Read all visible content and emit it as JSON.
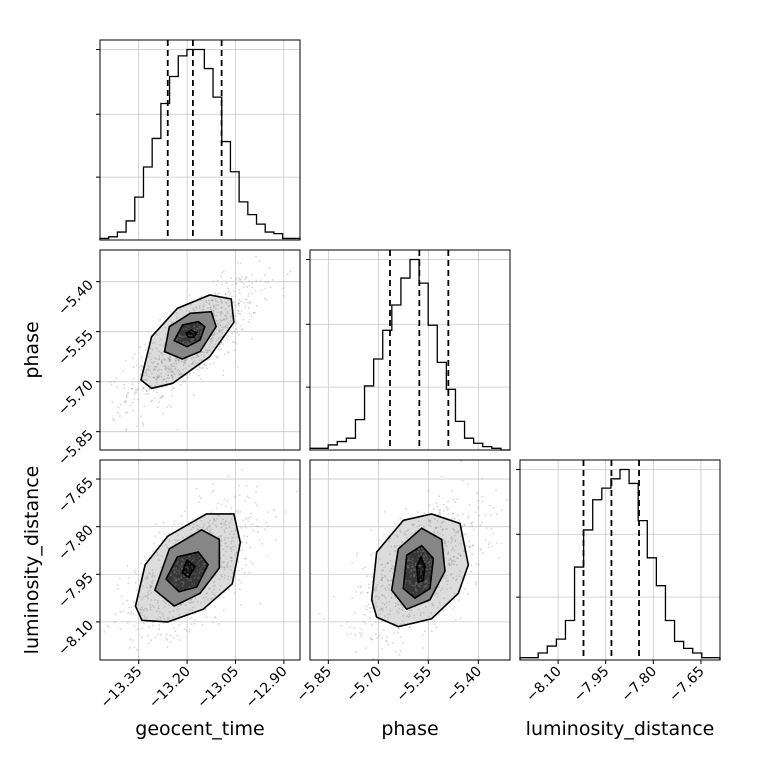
{
  "chart_data": {
    "type": "corner",
    "parameters": [
      "geocent_time",
      "phase",
      "luminosity_distance"
    ],
    "axis_labels": {
      "geocent_time": "geocent_time",
      "phase": "phase",
      "luminosity_distance": "luminosity_distance"
    },
    "ranges": {
      "geocent_time": [
        -13.47,
        -12.85
      ],
      "phase": [
        -5.905,
        -5.305
      ],
      "luminosity_distance": [
        -8.22,
        -7.59
      ]
    },
    "ticks": {
      "geocent_time": {
        "values": [
          -13.35,
          -13.2,
          -13.05,
          -12.9
        ],
        "labels": [
          "−13.35",
          "−13.20",
          "−13.05",
          "−12.90"
        ]
      },
      "phase": {
        "values": [
          -5.85,
          -5.7,
          -5.55,
          -5.4
        ],
        "labels": [
          "−5.85",
          "−5.70",
          "−5.55",
          "−5.40"
        ]
      },
      "luminosity_distance": {
        "values": [
          -8.1,
          -7.95,
          -7.8,
          -7.65
        ],
        "labels": [
          "−8.10",
          "−7.95",
          "−7.80",
          "−7.65"
        ]
      }
    },
    "quantiles": {
      "geocent_time": [
        -13.26,
        -13.182,
        -13.093
      ],
      "phase": [
        -5.665,
        -5.577,
        -5.49
      ],
      "luminosity_distance": [
        -8.02,
        -7.932,
        -7.845
      ]
    },
    "histograms": {
      "geocent_time": {
        "edges_range": [
          -13.47,
          -12.85
        ],
        "counts": [
          1,
          2,
          5,
          12,
          27,
          46,
          64,
          86,
          103,
          116,
          120,
          120,
          108,
          90,
          62,
          43,
          24,
          16,
          10,
          5,
          4,
          1,
          1
        ]
      },
      "phase": {
        "edges_range": [
          -5.905,
          -5.305
        ],
        "counts": [
          1,
          1,
          3,
          5,
          7,
          18,
          38,
          54,
          71,
          86,
          102,
          113,
          99,
          74,
          52,
          36,
          17,
          7,
          4,
          2,
          1,
          0
        ]
      },
      "luminosity_distance": {
        "edges_range": [
          -8.22,
          -7.59
        ],
        "counts": [
          1,
          1,
          3,
          6,
          9,
          17,
          40,
          56,
          69,
          74,
          78,
          82,
          76,
          60,
          44,
          32,
          17,
          8,
          5,
          3,
          1,
          1
        ]
      }
    },
    "pairs": [
      {
        "x": "geocent_time",
        "y": "phase",
        "contours": [
          [
            [
              -13.203,
              -5.555
            ],
            [
              -13.187,
              -5.545
            ],
            [
              -13.17,
              -5.554
            ],
            [
              -13.18,
              -5.567
            ],
            [
              -13.196,
              -5.566
            ],
            [
              -13.203,
              -5.555
            ]
          ],
          [
            [
              -13.24,
              -5.577
            ],
            [
              -13.214,
              -5.53
            ],
            [
              -13.165,
              -5.52
            ],
            [
              -13.145,
              -5.535
            ],
            [
              -13.16,
              -5.575
            ],
            [
              -13.2,
              -5.595
            ],
            [
              -13.24,
              -5.577
            ]
          ],
          [
            [
              -13.27,
              -5.61
            ],
            [
              -13.255,
              -5.535
            ],
            [
              -13.19,
              -5.495
            ],
            [
              -13.125,
              -5.49
            ],
            [
              -13.11,
              -5.535
            ],
            [
              -13.16,
              -5.61
            ],
            [
              -13.215,
              -5.632
            ],
            [
              -13.27,
              -5.61
            ]
          ],
          [
            [
              -13.343,
              -5.695
            ],
            [
              -13.31,
              -5.565
            ],
            [
              -13.23,
              -5.48
            ],
            [
              -13.13,
              -5.44
            ],
            [
              -13.063,
              -5.452
            ],
            [
              -13.055,
              -5.522
            ],
            [
              -13.13,
              -5.625
            ],
            [
              -13.245,
              -5.705
            ],
            [
              -13.31,
              -5.72
            ],
            [
              -13.343,
              -5.695
            ]
          ]
        ]
      },
      {
        "x": "geocent_time",
        "y": "luminosity_distance",
        "contours": [
          [
            [
              -13.215,
              -7.945
            ],
            [
              -13.2,
              -7.905
            ],
            [
              -13.175,
              -7.925
            ],
            [
              -13.195,
              -7.96
            ],
            [
              -13.215,
              -7.945
            ]
          ],
          [
            [
              -13.265,
              -7.965
            ],
            [
              -13.23,
              -7.895
            ],
            [
              -13.165,
              -7.88
            ],
            [
              -13.135,
              -7.92
            ],
            [
              -13.17,
              -7.99
            ],
            [
              -13.225,
              -8.005
            ],
            [
              -13.265,
              -7.965
            ]
          ],
          [
            [
              -13.3,
              -8.0
            ],
            [
              -13.255,
              -7.87
            ],
            [
              -13.155,
              -7.81
            ],
            [
              -13.1,
              -7.84
            ],
            [
              -13.1,
              -7.93
            ],
            [
              -13.16,
              -8.01
            ],
            [
              -13.24,
              -8.05
            ],
            [
              -13.3,
              -8.0
            ]
          ],
          [
            [
              -13.36,
              -8.05
            ],
            [
              -13.33,
              -7.92
            ],
            [
              -13.26,
              -7.83
            ],
            [
              -13.14,
              -7.76
            ],
            [
              -13.055,
              -7.76
            ],
            [
              -13.035,
              -7.85
            ],
            [
              -13.06,
              -7.98
            ],
            [
              -13.15,
              -8.06
            ],
            [
              -13.26,
              -8.1
            ],
            [
              -13.34,
              -8.095
            ],
            [
              -13.36,
              -8.05
            ]
          ]
        ]
      },
      {
        "x": "phase",
        "y": "luminosity_distance",
        "contours": [
          [
            [
              -5.58,
              -7.975
            ],
            [
              -5.585,
              -7.925
            ],
            [
              -5.572,
              -7.895
            ],
            [
              -5.56,
              -7.925
            ],
            [
              -5.565,
              -7.97
            ],
            [
              -5.58,
              -7.975
            ]
          ],
          [
            [
              -5.625,
              -7.995
            ],
            [
              -5.615,
              -7.89
            ],
            [
              -5.57,
              -7.86
            ],
            [
              -5.535,
              -7.9
            ],
            [
              -5.545,
              -7.995
            ],
            [
              -5.59,
              -8.025
            ],
            [
              -5.625,
              -7.995
            ]
          ],
          [
            [
              -5.66,
              -8.0
            ],
            [
              -5.64,
              -7.87
            ],
            [
              -5.57,
              -7.805
            ],
            [
              -5.51,
              -7.84
            ],
            [
              -5.5,
              -7.94
            ],
            [
              -5.545,
              -8.03
            ],
            [
              -5.615,
              -8.06
            ],
            [
              -5.66,
              -8.0
            ]
          ],
          [
            [
              -5.72,
              -8.03
            ],
            [
              -5.705,
              -7.88
            ],
            [
              -5.625,
              -7.78
            ],
            [
              -5.54,
              -7.76
            ],
            [
              -5.455,
              -7.79
            ],
            [
              -5.43,
              -7.92
            ],
            [
              -5.46,
              -8.01
            ],
            [
              -5.54,
              -8.09
            ],
            [
              -5.64,
              -8.115
            ],
            [
              -5.705,
              -8.085
            ],
            [
              -5.72,
              -8.03
            ]
          ]
        ]
      }
    ],
    "scatter_cloud": {
      "description_of_points": "dense grey sample points around each 2D posterior",
      "pairs": [
        {
          "x": "geocent_time",
          "y": "phase",
          "center": [
            -13.18,
            -5.58
          ],
          "spread": [
            0.08,
            0.075
          ],
          "corr": 0.78
        },
        {
          "x": "geocent_time",
          "y": "luminosity_distance",
          "center": [
            -13.18,
            -7.93
          ],
          "spread": [
            0.08,
            0.085
          ],
          "corr": 0.6
        },
        {
          "x": "phase",
          "y": "luminosity_distance",
          "center": [
            -5.575,
            -7.93
          ],
          "spread": [
            0.075,
            0.085
          ],
          "corr": 0.55
        }
      ]
    },
    "grid": true
  }
}
